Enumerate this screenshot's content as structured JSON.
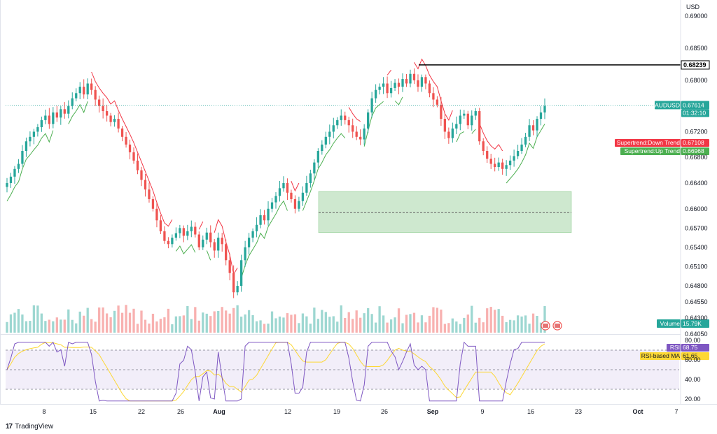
{
  "currency": "USD",
  "symbol": "AUDUSD",
  "price": "0.67614",
  "countdown": "01:32:10",
  "resistance_label": "0.68239",
  "supertrend_down": {
    "name": "Supertrend:Down Trend",
    "value": "0.67108"
  },
  "supertrend_up": {
    "name": "Supertrend:Up Trend",
    "value": "0.66968"
  },
  "volume_label": {
    "name": "Volume",
    "value": "15.79K"
  },
  "rsi_label": {
    "name": "RSI",
    "value": "68.75"
  },
  "rsi_ma_label": {
    "name": "RSI-based MA",
    "value": "61.65"
  },
  "brand": "TradingView",
  "colors": {
    "up": "#26a69a",
    "down": "#ef5350",
    "supertrend_up": "#4caf50",
    "supertrend_down": "#f23645",
    "zone": "#a5d6a7",
    "rsi": "#7e57c2",
    "rsi_ma": "#fdd835"
  },
  "chart_data": {
    "type": "candlestick",
    "timeframe_ticks": [
      "8",
      "15",
      "22",
      "26",
      "Aug",
      "12",
      "19",
      "26",
      "Sep",
      "9",
      "16",
      "23",
      "Oct",
      "7"
    ],
    "price_axis": [
      "0.69000",
      "0.68500",
      "0.68000",
      "0.67200",
      "0.66800",
      "0.66400",
      "0.66000",
      "0.65700",
      "0.65400",
      "0.65100",
      "0.64800",
      "0.64550",
      "0.64300",
      "0.64050"
    ],
    "price_ylim": [
      0.6405,
      0.6925
    ],
    "resistance_line": 0.68239,
    "current_price": 0.67614,
    "demand_zone": {
      "low": 0.6563,
      "high": 0.6627,
      "mid": 0.6594
    },
    "rsi_axis": [
      "80.00",
      "60.00",
      "40.00",
      "20.00"
    ],
    "rsi_levels": {
      "upper": 70,
      "middle": 50,
      "lower": 30
    },
    "rsi_ylim": [
      15,
      85
    ],
    "closes": [
      0.664,
      0.665,
      0.6662,
      0.667,
      0.669,
      0.6705,
      0.6712,
      0.672,
      0.6727,
      0.6738,
      0.6745,
      0.6732,
      0.675,
      0.6742,
      0.6755,
      0.6748,
      0.676,
      0.6772,
      0.678,
      0.679,
      0.6778,
      0.6795,
      0.6785,
      0.677,
      0.676,
      0.6752,
      0.6745,
      0.6735,
      0.674,
      0.6725,
      0.6712,
      0.67,
      0.6688,
      0.6675,
      0.666,
      0.6645,
      0.663,
      0.6615,
      0.66,
      0.6582,
      0.6565,
      0.655,
      0.6545,
      0.6555,
      0.6562,
      0.657,
      0.6558,
      0.6565,
      0.6572,
      0.656,
      0.654,
      0.6552,
      0.6563,
      0.6548,
      0.6535,
      0.6555,
      0.6545,
      0.652,
      0.65,
      0.647,
      0.648,
      0.652,
      0.654,
      0.6555,
      0.6565,
      0.6575,
      0.659,
      0.6582,
      0.66,
      0.661,
      0.662,
      0.6632,
      0.664,
      0.6625,
      0.6615,
      0.66,
      0.6612,
      0.6625,
      0.664,
      0.6655,
      0.6672,
      0.669,
      0.67,
      0.6712,
      0.672,
      0.673,
      0.6738,
      0.6745,
      0.6738,
      0.673,
      0.672,
      0.6712,
      0.6708,
      0.6725,
      0.675,
      0.6772,
      0.6785,
      0.679,
      0.6795,
      0.678,
      0.6788,
      0.6796,
      0.679,
      0.6802,
      0.6795,
      0.681,
      0.68,
      0.679,
      0.6805,
      0.6795,
      0.678,
      0.677,
      0.6762,
      0.674,
      0.672,
      0.671,
      0.6725,
      0.6732,
      0.6745,
      0.6748,
      0.673,
      0.6745,
      0.6752,
      0.6705,
      0.669,
      0.6678,
      0.667,
      0.6665,
      0.6672,
      0.6662,
      0.6668,
      0.6675,
      0.6682,
      0.669,
      0.67,
      0.6712,
      0.673,
      0.6722,
      0.674,
      0.675,
      0.676
    ]
  }
}
